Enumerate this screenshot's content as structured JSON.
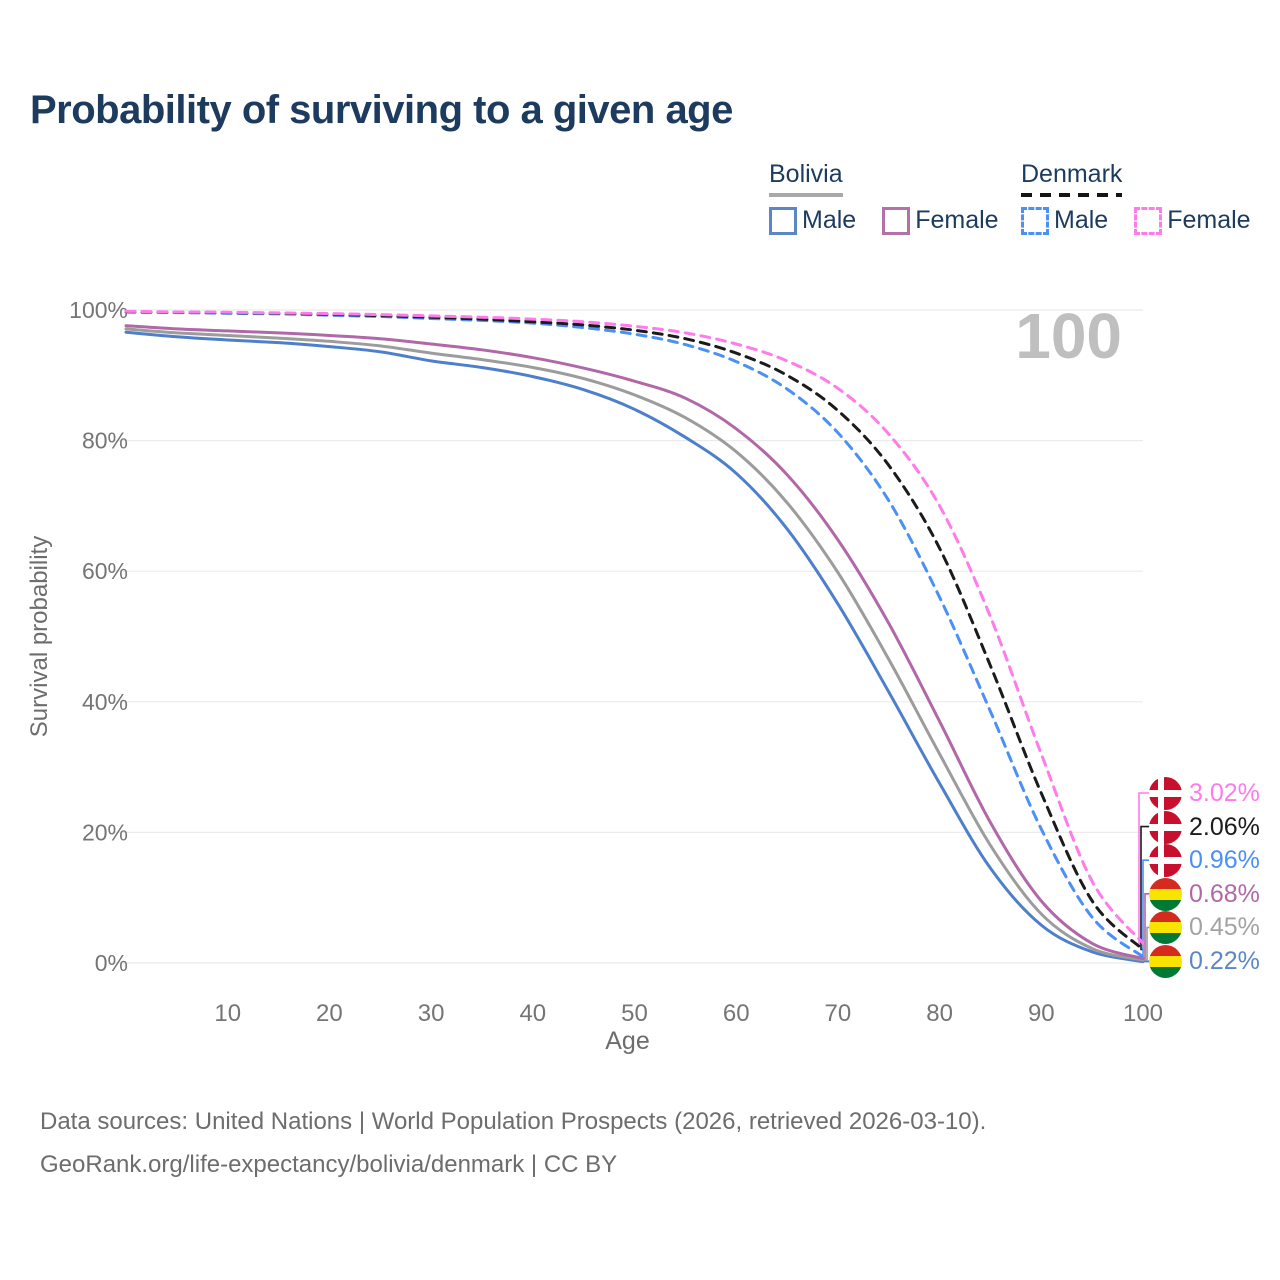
{
  "title": "Probability of surviving to a given age",
  "legend": {
    "groups": [
      {
        "label": "Bolivia",
        "line_style": "solid",
        "line_color": "#a8a8a8",
        "items": [
          {
            "label": "Male",
            "color": "#5b87c8"
          },
          {
            "label": "Female",
            "color": "#b371a8"
          }
        ]
      },
      {
        "label": "Denmark",
        "line_style": "dashed",
        "line_color": "#141414",
        "items": [
          {
            "label": "Male",
            "color": "#4a90f5"
          },
          {
            "label": "Female",
            "color": "#ff7bec"
          }
        ]
      }
    ]
  },
  "chart_data": {
    "type": "line",
    "title": "Probability of surviving to a given age",
    "xlabel": "Age",
    "ylabel": "Survival probability",
    "xlim": [
      0,
      100
    ],
    "ylim": [
      0,
      100
    ],
    "x_ticks": [
      10,
      20,
      30,
      40,
      50,
      60,
      70,
      80,
      90,
      100
    ],
    "y_tick_values": [
      100,
      80,
      60,
      40,
      20,
      0
    ],
    "y_tick_labels": [
      "100%",
      "80%",
      "60%",
      "40%",
      "20%",
      "0%"
    ],
    "grid": "horizontal",
    "hover_age_label": "100",
    "ages": [
      0,
      5,
      10,
      15,
      20,
      25,
      30,
      35,
      40,
      45,
      50,
      55,
      60,
      65,
      70,
      75,
      80,
      85,
      90,
      95,
      100
    ],
    "series": [
      {
        "name": "Denmark Female",
        "country": "Denmark",
        "sex": "Female",
        "flag": "denmark",
        "color": "#ff7bec",
        "dashed": true,
        "end_label": "3.02%",
        "values": [
          99.8,
          99.7,
          99.65,
          99.55,
          99.45,
          99.3,
          99.1,
          98.9,
          98.6,
          98.2,
          97.5,
          96.5,
          94.8,
          92.2,
          88.0,
          81.0,
          70.0,
          53.0,
          32.0,
          12.5,
          3.02
        ]
      },
      {
        "name": "Denmark Total",
        "country": "Denmark",
        "sex": "Total",
        "flag": "denmark",
        "color": "#1b1b1b",
        "dashed": true,
        "end_label": "2.06%",
        "values": [
          99.75,
          99.65,
          99.6,
          99.5,
          99.35,
          99.15,
          98.9,
          98.6,
          98.2,
          97.7,
          96.9,
          95.6,
          93.4,
          90.0,
          84.6,
          76.2,
          63.5,
          45.5,
          26.0,
          9.5,
          2.06
        ]
      },
      {
        "name": "Denmark Male",
        "country": "Denmark",
        "sex": "Male",
        "flag": "denmark",
        "color": "#4a90f5",
        "dashed": true,
        "end_label": "0.96%",
        "values": [
          99.7,
          99.6,
          99.5,
          99.4,
          99.2,
          99.0,
          98.7,
          98.4,
          98.0,
          97.3,
          96.3,
          94.7,
          92.1,
          87.9,
          81.2,
          70.8,
          56.0,
          38.5,
          20.5,
          7.0,
          0.96
        ]
      },
      {
        "name": "Bolivia Female",
        "country": "Bolivia",
        "sex": "Female",
        "flag": "bolivia",
        "color": "#b168a8",
        "dashed": false,
        "end_label": "0.68%",
        "values": [
          97.6,
          97.1,
          96.8,
          96.5,
          96.1,
          95.6,
          94.8,
          93.9,
          92.7,
          91.1,
          89.1,
          86.5,
          81.8,
          74.8,
          64.8,
          52.0,
          37.0,
          21.5,
          9.5,
          3.0,
          0.68
        ]
      },
      {
        "name": "Bolivia Total",
        "country": "Bolivia",
        "sex": "Total",
        "flag": "bolivia",
        "color": "#9c9c9c",
        "dashed": false,
        "end_label": "0.45%",
        "values": [
          97.1,
          96.5,
          96.1,
          95.7,
          95.2,
          94.5,
          93.4,
          92.4,
          91.2,
          89.5,
          87.0,
          83.5,
          78.3,
          70.5,
          59.8,
          46.5,
          32.0,
          18.0,
          7.5,
          2.2,
          0.45
        ]
      },
      {
        "name": "Bolivia Male",
        "country": "Bolivia",
        "sex": "Male",
        "flag": "bolivia",
        "color": "#4d7fcb",
        "dashed": false,
        "end_label": "0.22%",
        "values": [
          96.6,
          95.9,
          95.4,
          95.0,
          94.4,
          93.6,
          92.2,
          91.2,
          89.8,
          87.8,
          84.8,
          80.5,
          75.0,
          66.5,
          55.0,
          41.5,
          27.5,
          14.5,
          5.8,
          1.7,
          0.22
        ]
      }
    ]
  },
  "footer": {
    "line1": "Data sources: United Nations | World Population Prospects (2026, retrieved 2026-03-10).",
    "line2": "GeoRank.org/life-expectancy/bolivia/denmark | CC BY"
  }
}
